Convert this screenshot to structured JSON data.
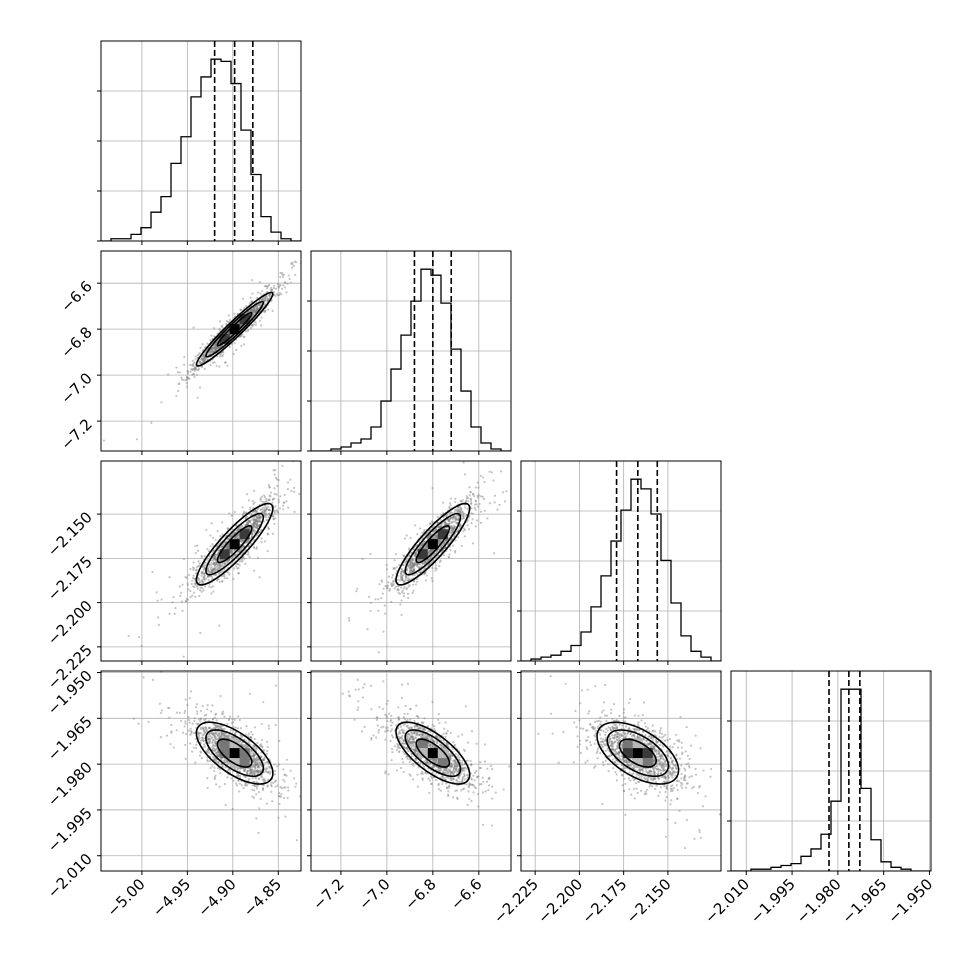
{
  "chart_data": {
    "type": "corner",
    "parameters": [
      {
        "range": [
          -5.045,
          -4.825
        ],
        "ticks": [
          -5.0,
          -4.95,
          -4.9,
          -4.85
        ],
        "tick_labels": [
          "−5.00",
          "−4.95",
          "−4.90",
          "−4.85"
        ],
        "quantiles": [
          -4.92,
          -4.898,
          -4.878
        ]
      },
      {
        "range": [
          -7.33,
          -6.46
        ],
        "ticks": [
          -7.2,
          -7.0,
          -6.8,
          -6.6
        ],
        "tick_labels": [
          "−7.2",
          "−7.0",
          "−6.8",
          "−6.6"
        ],
        "quantiles": [
          -6.88,
          -6.8,
          -6.72
        ]
      },
      {
        "range": [
          -2.233,
          -2.12
        ],
        "ticks": [
          -2.225,
          -2.2,
          -2.175,
          -2.15
        ],
        "tick_labels": [
          "−2.225",
          "−2.200",
          "−2.175",
          "−2.150"
        ],
        "quantiles": [
          -2.179,
          -2.167,
          -2.156
        ]
      },
      {
        "range": [
          -2.015,
          -1.9495
        ],
        "ticks": [
          -2.01,
          -1.995,
          -1.98,
          -1.965,
          -1.95
        ],
        "tick_labels": [
          "−2.010",
          "−1.995",
          "−1.980",
          "−1.965",
          "−1.950"
        ],
        "quantiles": [
          -1.9829,
          -1.9764,
          -1.9728
        ]
      }
    ],
    "histograms": [
      {
        "counts": [
          0,
          1,
          1,
          3,
          6,
          13,
          20,
          35,
          47,
          65,
          74,
          82,
          81,
          71,
          50,
          30,
          11,
          4,
          1,
          0
        ]
      },
      {
        "counts": [
          0,
          0,
          1,
          2,
          4,
          6,
          12,
          25,
          41,
          58,
          75,
          91,
          88,
          74,
          51,
          30,
          12,
          4,
          1,
          0
        ]
      },
      {
        "counts": [
          0,
          1,
          2,
          3,
          5,
          8,
          15,
          28,
          44,
          62,
          78,
          94,
          89,
          76,
          52,
          30,
          13,
          5,
          2,
          0
        ]
      },
      {
        "counts": [
          0,
          0,
          1,
          1,
          2,
          3,
          4,
          8,
          12,
          20,
          38,
          99,
          99,
          45,
          17,
          5,
          2,
          1,
          0,
          0
        ]
      }
    ],
    "correlations": [
      {
        "x": 0,
        "y": 1,
        "rho": 0.96
      },
      {
        "x": 0,
        "y": 2,
        "rho": 0.88
      },
      {
        "x": 1,
        "y": 2,
        "rho": 0.88
      },
      {
        "x": 0,
        "y": 3,
        "rho": -0.65
      },
      {
        "x": 1,
        "y": 3,
        "rho": -0.7
      },
      {
        "x": 2,
        "y": 3,
        "rho": -0.55
      }
    ],
    "grid": true,
    "colors": {
      "ink": "#000000",
      "grid": "#b0b0b0",
      "points": "#7f7f7f"
    }
  }
}
